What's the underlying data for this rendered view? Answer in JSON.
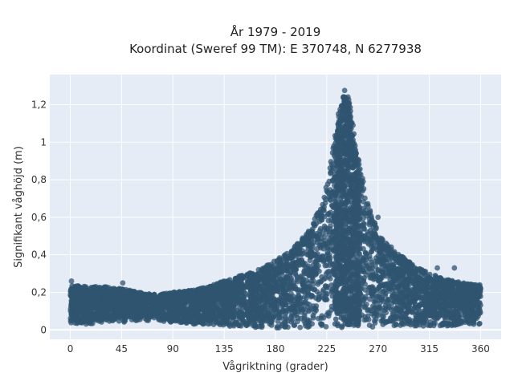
{
  "chart_data": {
    "type": "scatter",
    "title": "År 1979 - 2019",
    "subtitle": "Koordinat (Sweref 99 TM): E 370748, N 6277938",
    "xlabel": "Vågriktning (grader)",
    "ylabel": "Signifikant våghöjd (m)",
    "xlim": [
      -18,
      378
    ],
    "ylim": [
      -0.05,
      1.36
    ],
    "x_ticks": [
      0,
      45,
      90,
      135,
      180,
      225,
      270,
      315,
      360
    ],
    "x_tick_labels": [
      "0",
      "45",
      "90",
      "135",
      "180",
      "225",
      "270",
      "315",
      "360"
    ],
    "y_ticks": [
      0,
      0.2,
      0.4,
      0.6,
      0.8,
      1.0,
      1.2
    ],
    "y_tick_labels": [
      "0",
      "0,2",
      "0,4",
      "0,6",
      "0,8",
      "1",
      "1,2"
    ],
    "grid": true,
    "legend": "none",
    "marker_color": "#2f5470",
    "plot_background": "#e5ecf6",
    "series": [
      {
        "envelope": {
          "x": [
            0,
            15,
            30,
            45,
            60,
            75,
            90,
            105,
            120,
            135,
            150,
            165,
            180,
            195,
            210,
            220,
            225,
            230,
            235,
            240,
            245,
            250,
            255,
            260,
            270,
            285,
            300,
            315,
            330,
            345,
            360
          ],
          "y_min": [
            0.03,
            0.03,
            0.04,
            0.04,
            0.05,
            0.05,
            0.04,
            0.03,
            0.03,
            0.02,
            0.02,
            0.01,
            0.01,
            0.01,
            0.01,
            0.01,
            0.01,
            0.01,
            0.01,
            0.01,
            0.01,
            0.01,
            0.01,
            0.01,
            0.02,
            0.02,
            0.02,
            0.02,
            0.02,
            0.03,
            0.03
          ],
          "y_max": [
            0.24,
            0.23,
            0.23,
            0.22,
            0.2,
            0.19,
            0.2,
            0.21,
            0.23,
            0.26,
            0.29,
            0.32,
            0.37,
            0.43,
            0.54,
            0.66,
            0.78,
            0.95,
            1.15,
            1.3,
            1.25,
            1.0,
            0.85,
            0.7,
            0.52,
            0.42,
            0.35,
            0.3,
            0.27,
            0.25,
            0.24
          ]
        },
        "outliers": [
          {
            "x": 270,
            "y": 0.6
          },
          {
            "x": 337,
            "y": 0.33
          },
          {
            "x": 322,
            "y": 0.33
          },
          {
            "x": 46,
            "y": 0.25
          },
          {
            "x": 1,
            "y": 0.26
          }
        ]
      }
    ]
  }
}
